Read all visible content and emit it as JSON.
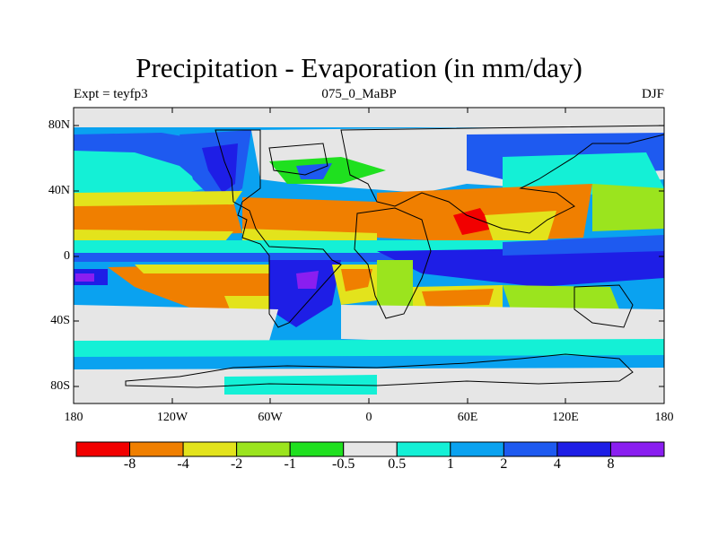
{
  "title": "Precipitation - Evaporation (in mm/day)",
  "subtitle_left": "Expt = teyfp3",
  "subtitle_center": "075_0_MaBP",
  "subtitle_right": "DJF",
  "y_ticks": [
    "80N",
    "40N",
    "0",
    "40S",
    "80S"
  ],
  "x_ticks": [
    "180",
    "120W",
    "60W",
    "0",
    "60E",
    "120E",
    "180"
  ],
  "colorbar": {
    "colors": [
      "#f20000",
      "#f07f00",
      "#e3e31c",
      "#9be41e",
      "#1fe01f",
      "#e6e6e6",
      "#14f0d6",
      "#0aa2f0",
      "#1e5af0",
      "#1e1ee6",
      "#8a1ef0"
    ],
    "labels": [
      "-8",
      "-4",
      "-2",
      "-1",
      "-0.5",
      "0.5",
      "1",
      "2",
      "4",
      "8"
    ]
  },
  "palette": {
    "red": "#f20000",
    "orange": "#f07f00",
    "yellow": "#e3e31c",
    "lime": "#9be41e",
    "green": "#1fe01f",
    "gray": "#e6e6e6",
    "cyan": "#14f0d6",
    "lightblue": "#0aa2f0",
    "blue": "#1e5af0",
    "darkblue": "#1e1ee6",
    "purple": "#8a1ef0"
  }
}
